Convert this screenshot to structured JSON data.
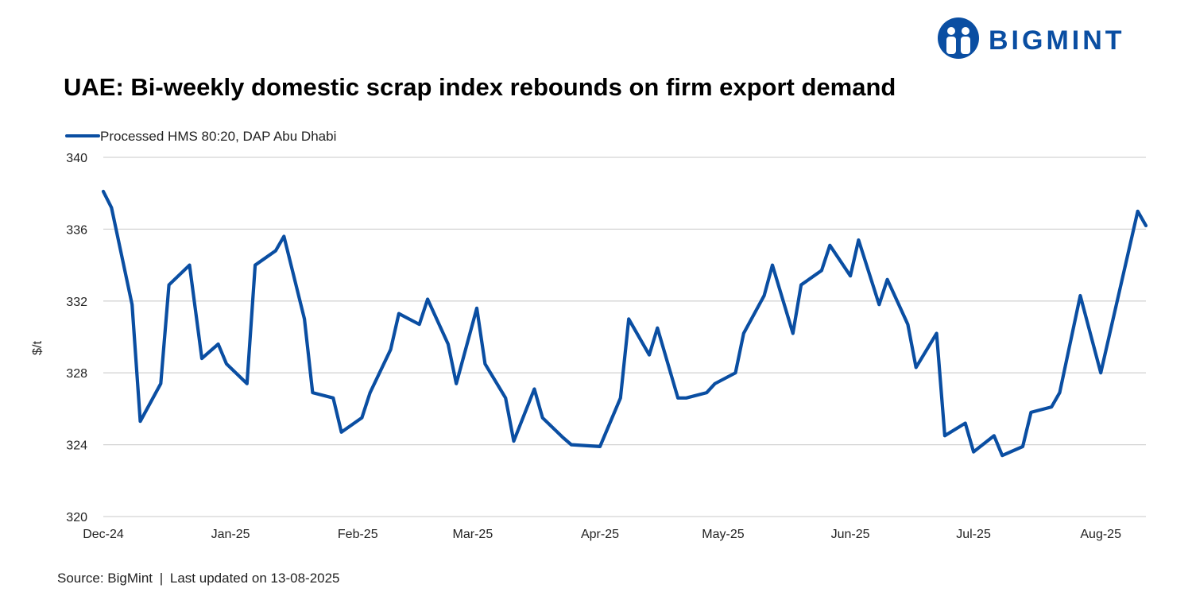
{
  "brand": {
    "name": "BIGMINT",
    "color": "#0a4ea2"
  },
  "title": "UAE: Bi-weekly domestic scrap index rebounds on firm export demand",
  "source": {
    "text": "Source: BigMint",
    "separator": "|",
    "updated": "Last updated on 13-08-2025"
  },
  "chart_data": {
    "type": "line",
    "title": "UAE: Bi-weekly domestic scrap index rebounds on firm export demand",
    "ylabel": "$/t",
    "xlabel": "",
    "ylim": [
      320,
      340
    ],
    "yticks": [
      "320",
      "324",
      "328",
      "332",
      "336",
      "340"
    ],
    "xlim": [
      0,
      254
    ],
    "xticks": [
      {
        "label": "Dec-24",
        "t": 0
      },
      {
        "label": "Jan-25",
        "t": 31
      },
      {
        "label": "Feb-25",
        "t": 62
      },
      {
        "label": "Mar-25",
        "t": 90
      },
      {
        "label": "Apr-25",
        "t": 121
      },
      {
        "label": "May-25",
        "t": 151
      },
      {
        "label": "Jun-25",
        "t": 182
      },
      {
        "label": "Jul-25",
        "t": 212
      },
      {
        "label": "Aug-25",
        "t": 243
      }
    ],
    "grid": true,
    "legend": "top-left",
    "series": [
      {
        "name": "Processed HMS 80:20, DAP Abu Dhabi",
        "color": "#0a4ea2",
        "t": [
          0,
          2,
          7,
          9,
          14,
          16,
          21,
          24,
          28,
          30,
          35,
          37,
          42,
          44,
          49,
          51,
          56,
          58,
          63,
          65,
          70,
          72,
          77,
          79,
          84,
          86,
          91,
          93,
          98,
          100,
          105,
          107,
          112,
          114,
          121,
          126,
          128,
          133,
          135,
          140,
          142,
          147,
          149,
          154,
          156,
          161,
          163,
          168,
          170,
          175,
          177,
          182,
          184,
          189,
          191,
          196,
          198,
          203,
          205,
          210,
          212,
          217,
          219,
          224,
          226,
          231,
          233,
          238,
          243,
          252,
          253,
          254
        ],
        "values": [
          338.1,
          337.2,
          331.8,
          325.3,
          327.4,
          332.9,
          334.0,
          328.8,
          329.6,
          328.5,
          327.4,
          334.0,
          334.8,
          335.6,
          331.0,
          326.9,
          326.6,
          324.7,
          325.5,
          326.9,
          329.3,
          331.3,
          330.7,
          332.1,
          329.6,
          327.4,
          331.6,
          328.5,
          326.6,
          324.2,
          327.1,
          325.5,
          324.4,
          324.0,
          323.9,
          326.6,
          331.0,
          329.0,
          330.5,
          326.6,
          326.6,
          326.9,
          327.4,
          328.0,
          330.2,
          332.3,
          334.0,
          330.2,
          332.9,
          333.7,
          335.1,
          333.4,
          335.4,
          331.8,
          333.2,
          330.7,
          328.3,
          330.2,
          324.5,
          325.2,
          323.6,
          324.5,
          323.4,
          323.9,
          325.8,
          326.1,
          326.9,
          332.3,
          328.0,
          337.0,
          336.6,
          336.2
        ]
      }
    ]
  }
}
